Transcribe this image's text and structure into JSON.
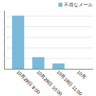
{
  "chart_data": {
    "type": "bar",
    "categories": [
      "10月28日 9:00",
      "10月28日 10:00",
      "10月18日 11:00",
      "10月"
    ],
    "series": [
      {
        "name": "不尋なメール",
        "color": "#7ab9d8",
        "values": [
          100,
          22,
          10,
          0
        ]
      }
    ],
    "ylim": [
      0,
      110
    ],
    "yticks": [
      0,
      20,
      40,
      60,
      80,
      100
    ],
    "grid": true,
    "legend": "top-right",
    "tick_labels": "x"
  }
}
